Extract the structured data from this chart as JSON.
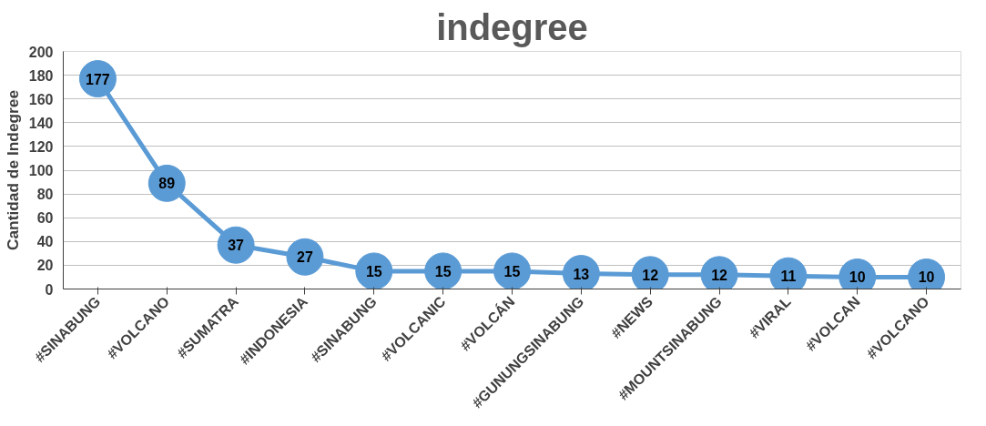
{
  "chart_data": {
    "type": "line",
    "title": "indegree",
    "ylabel": "Cantidad de Indegree",
    "categories": [
      "#SINABUNG",
      "#VOLCANO",
      "#SUMATRA",
      "#INDONESIA",
      "#SINABUNG",
      "#VOLCANIC",
      "#VOLCÁN",
      "#GUNUNGSINABUNG",
      "#NEWS",
      "#MOUNTSINABUNG",
      "#VIRAL",
      "#VOLCAN",
      "#VOLCANO"
    ],
    "series": [
      {
        "color": "#5b9bd5",
        "values": [
          177,
          89,
          37,
          27,
          15,
          15,
          15,
          13,
          12,
          12,
          11,
          10,
          10
        ]
      }
    ],
    "ylim": [
      0,
      200
    ],
    "yticks": [
      0,
      20,
      40,
      60,
      80,
      100,
      120,
      140,
      160,
      180,
      200
    ],
    "grid": "y",
    "marker": "circle",
    "data_labels": true
  }
}
